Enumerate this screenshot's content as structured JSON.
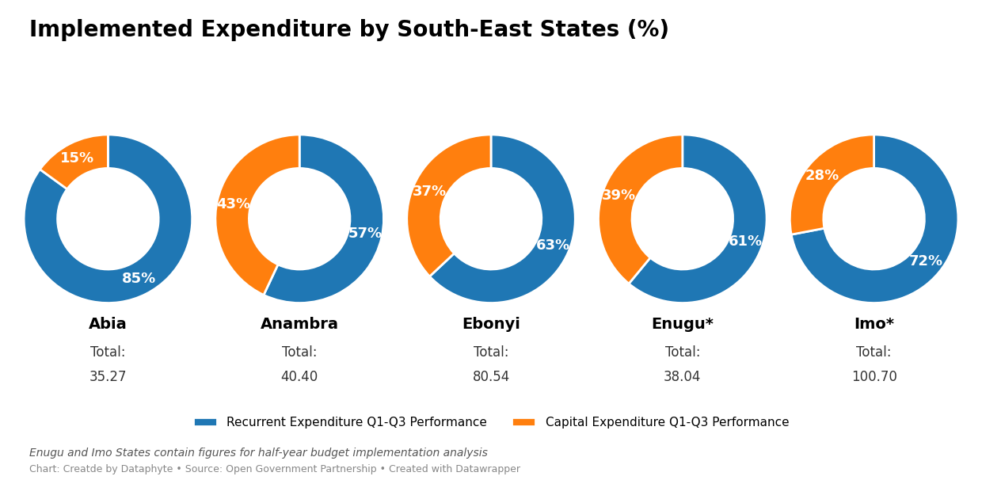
{
  "title": "Implemented Expenditure by South-East States (%)",
  "legend": "lower center",
  "annotations": [
    "Enugu and Imo States contain figures for half-year budget implementation analysis",
    "Chart: Creatde by Dataphyte • Source: Open Government Partnership • Created with Datawrapper"
  ],
  "chart_data": [
    {
      "type": "pie",
      "title": "Abia",
      "categories": [
        "Recurrent Expenditure Q1-Q3 Performance",
        "Capital Expenditure Q1-Q3 Performance"
      ],
      "values": [
        85,
        15
      ],
      "value_labels": [
        "85%",
        "15%"
      ],
      "data_labels": true,
      "annotations": [
        "Total:",
        "35.27"
      ]
    },
    {
      "type": "pie",
      "title": "Anambra",
      "categories": [
        "Recurrent Expenditure Q1-Q3 Performance",
        "Capital Expenditure Q1-Q3 Performance"
      ],
      "values": [
        57,
        43
      ],
      "value_labels": [
        "57%",
        "43%"
      ],
      "data_labels": true,
      "annotations": [
        "Total:",
        "40.40"
      ]
    },
    {
      "type": "pie",
      "title": "Ebonyi",
      "categories": [
        "Recurrent Expenditure Q1-Q3 Performance",
        "Capital Expenditure Q1-Q3 Performance"
      ],
      "values": [
        63,
        37
      ],
      "value_labels": [
        "63%",
        "37%"
      ],
      "data_labels": true,
      "annotations": [
        "Total:",
        "80.54"
      ]
    },
    {
      "type": "pie",
      "title": "Enugu*",
      "categories": [
        "Recurrent Expenditure Q1-Q3 Performance",
        "Capital Expenditure Q1-Q3 Performance"
      ],
      "values": [
        61,
        39
      ],
      "value_labels": [
        "61%",
        "39%"
      ],
      "data_labels": true,
      "annotations": [
        "Total:",
        "38.04"
      ]
    },
    {
      "type": "pie",
      "title": "Imo*",
      "categories": [
        "Recurrent Expenditure Q1-Q3 Performance",
        "Capital Expenditure Q1-Q3 Performance"
      ],
      "values": [
        72,
        28
      ],
      "value_labels": [
        "72%",
        "28%"
      ],
      "data_labels": true,
      "annotations": [
        "Total:",
        "100.70"
      ]
    }
  ]
}
